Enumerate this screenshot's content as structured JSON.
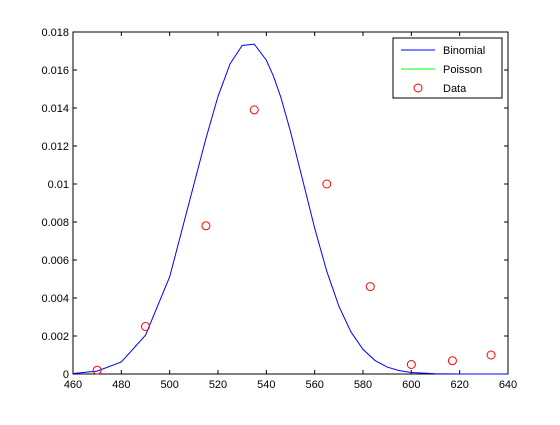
{
  "chart_data": {
    "type": "line",
    "xlim": [
      460,
      640
    ],
    "ylim": [
      0,
      0.018
    ],
    "xticks": [
      "460",
      "480",
      "500",
      "520",
      "540",
      "560",
      "580",
      "600",
      "620",
      "640"
    ],
    "yticks": [
      "0",
      "0.002",
      "0.004",
      "0.006",
      "0.008",
      "0.01",
      "0.012",
      "0.014",
      "0.016",
      "0.018"
    ],
    "grid": false,
    "legend_placement": "top-right",
    "series": [
      {
        "name": "Binomial",
        "kind": "line",
        "color": "#0000ff",
        "x": [
          460,
          470,
          480,
          490,
          500,
          510,
          515,
          520,
          525,
          530,
          535,
          540,
          543,
          546,
          550,
          555,
          560,
          565,
          570,
          575,
          580,
          585,
          590,
          595,
          600,
          610,
          620,
          630,
          640
        ],
        "y": [
          2.85e-05,
          0.0001525,
          0.000633,
          0.002041,
          0.005114,
          0.009966,
          0.012395,
          0.014611,
          0.016326,
          0.017292,
          0.017361,
          0.01652,
          0.015663,
          0.014564,
          0.012759,
          0.010224,
          0.00768,
          0.00541,
          0.003576,
          0.002219,
          0.001294,
          0.000709,
          0.000365,
          0.000177,
          8.06e-05,
          1.41e-05,
          2e-06,
          2e-07,
          0.0
        ]
      },
      {
        "name": "Poisson",
        "kind": "line",
        "color": "#00ff00",
        "x": [],
        "y": []
      },
      {
        "name": "Data",
        "kind": "scatter",
        "marker": "circle",
        "color": "#ff0000",
        "x": [
          470,
          490,
          515,
          535,
          565,
          583,
          600,
          617,
          633
        ],
        "y": [
          0.0002,
          0.0025,
          0.0078,
          0.0139,
          0.01,
          0.0046,
          0.0005,
          0.0007,
          0.001
        ]
      }
    ]
  }
}
